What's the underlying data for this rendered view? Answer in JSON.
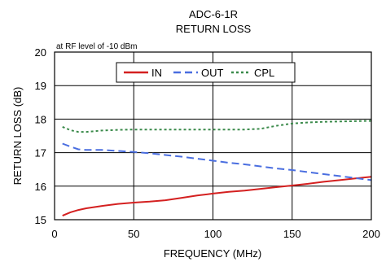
{
  "chart_data": {
    "type": "line",
    "title": "ADC-6-1R",
    "subtitle": "RETURN LOSS",
    "annotation": "at RF level of -10 dBm",
    "xlabel": "FREQUENCY (MHz)",
    "ylabel": "RETURN LOSS (dB)",
    "xlim": [
      0,
      200
    ],
    "ylim": [
      15,
      20
    ],
    "xticks": [
      "0",
      "50",
      "100",
      "150",
      "200"
    ],
    "yticks": [
      "15",
      "16",
      "17",
      "18",
      "19",
      "20"
    ],
    "grid": true,
    "legend_position": "top-right",
    "x": [
      5,
      10,
      15,
      20,
      30,
      40,
      50,
      60,
      70,
      80,
      90,
      100,
      110,
      120,
      130,
      140,
      150,
      160,
      170,
      180,
      190,
      200
    ],
    "series": [
      {
        "name": "IN",
        "color": "#d42020",
        "dash": "solid",
        "values": [
          15.12,
          15.22,
          15.29,
          15.34,
          15.41,
          15.47,
          15.51,
          15.54,
          15.58,
          15.65,
          15.72,
          15.78,
          15.83,
          15.87,
          15.92,
          15.97,
          16.02,
          16.07,
          16.13,
          16.18,
          16.23,
          16.28
        ]
      },
      {
        "name": "OUT",
        "color": "#4a6ee0",
        "dash": "dashed",
        "values": [
          17.27,
          17.18,
          17.1,
          17.08,
          17.08,
          17.05,
          17.02,
          16.98,
          16.93,
          16.88,
          16.82,
          16.76,
          16.7,
          16.65,
          16.59,
          16.53,
          16.48,
          16.42,
          16.36,
          16.3,
          16.24,
          16.18
        ]
      },
      {
        "name": "CPL",
        "color": "#3a8a4a",
        "dash": "dotted",
        "values": [
          17.77,
          17.67,
          17.62,
          17.62,
          17.66,
          17.68,
          17.69,
          17.69,
          17.69,
          17.69,
          17.69,
          17.69,
          17.69,
          17.69,
          17.71,
          17.8,
          17.87,
          17.9,
          17.92,
          17.93,
          17.94,
          17.95
        ]
      }
    ]
  }
}
